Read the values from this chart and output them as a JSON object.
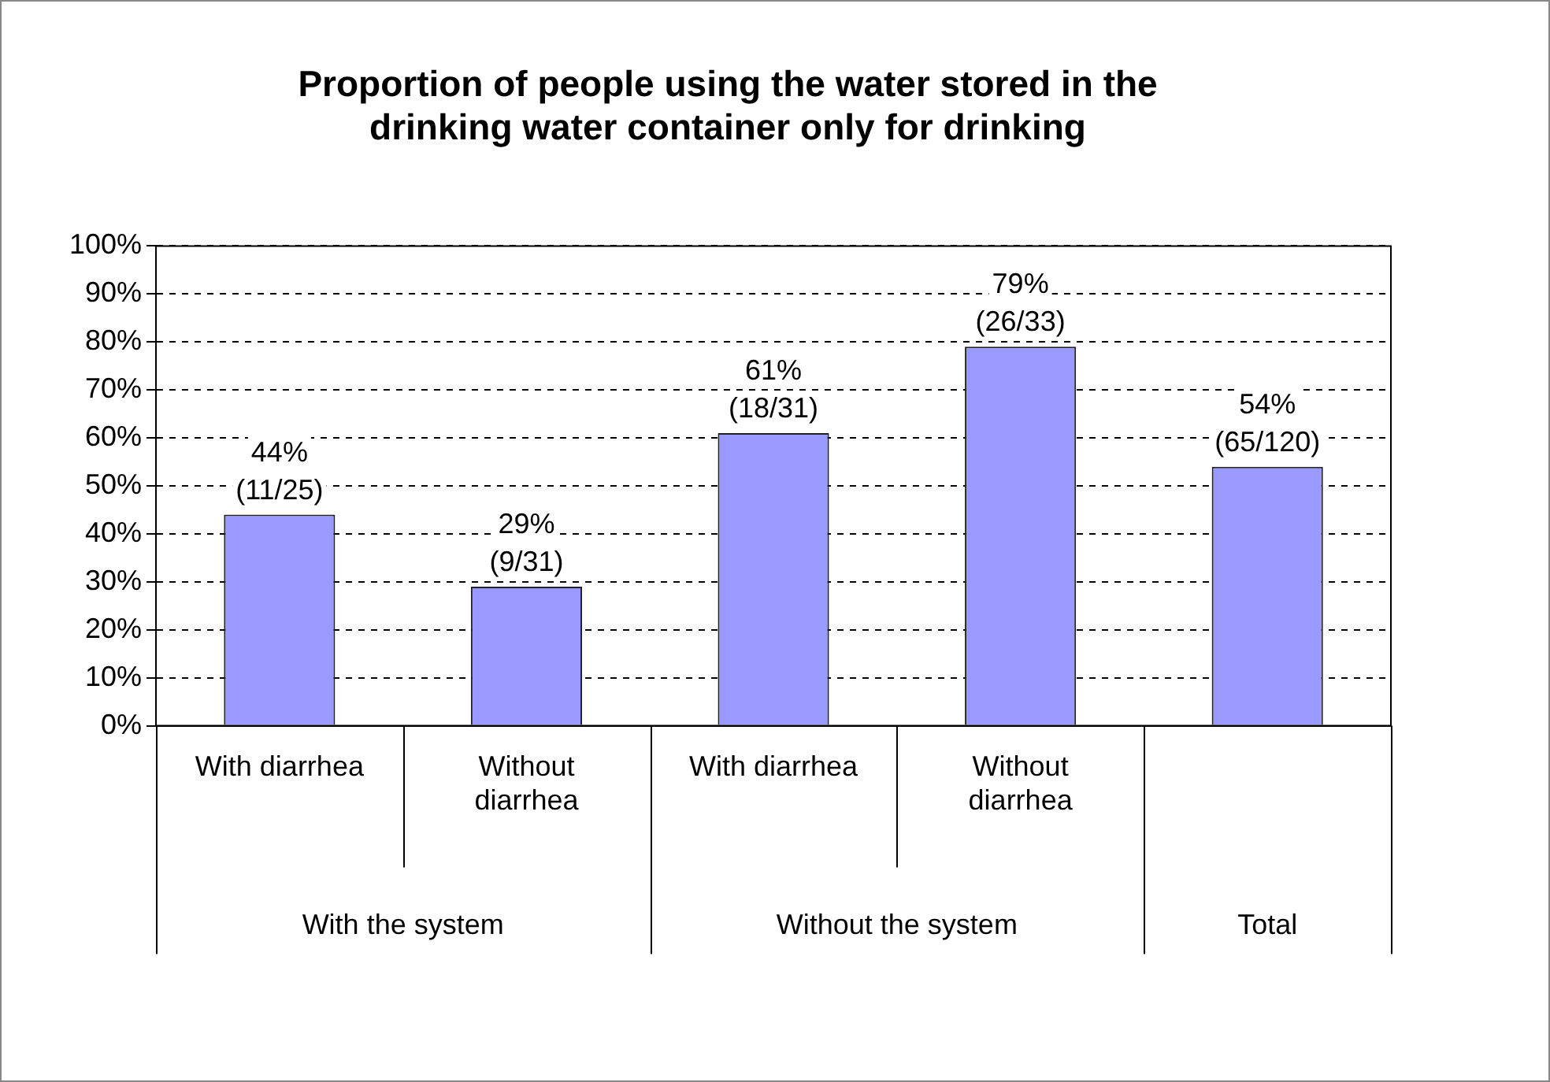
{
  "chart_data": {
    "type": "bar",
    "title": "Proportion of people using the water stored in the drinking water container only for drinking",
    "categories": [
      "With diarrhea",
      "Without diarrhea",
      "With diarrhea",
      "Without diarrhea",
      null
    ],
    "values": [
      44,
      29,
      61,
      79,
      54
    ],
    "color": "#9999ff",
    "value_labels": [
      "44% (11/25)",
      "29% (9/31)",
      "61% (18/31)",
      "79% (26/33)",
      "54% (65/120)"
    ],
    "annotations": [
      "With the system",
      "Without the system",
      "Total"
    ],
    "ylim": [
      0,
      100
    ],
    "yticks": [
      {
        "value": 0,
        "label": "0%"
      },
      {
        "value": 10,
        "label": "10%"
      },
      {
        "value": 20,
        "label": "20%"
      },
      {
        "value": 30,
        "label": "30%"
      },
      {
        "value": 40,
        "label": "40%"
      },
      {
        "value": 50,
        "label": "50%"
      },
      {
        "value": 60,
        "label": "60%"
      },
      {
        "value": 70,
        "label": "70%"
      },
      {
        "value": 80,
        "label": "80%"
      },
      {
        "value": 90,
        "label": "90%"
      },
      {
        "value": 100,
        "label": "100%"
      }
    ],
    "grid": "y",
    "legend": false
  }
}
